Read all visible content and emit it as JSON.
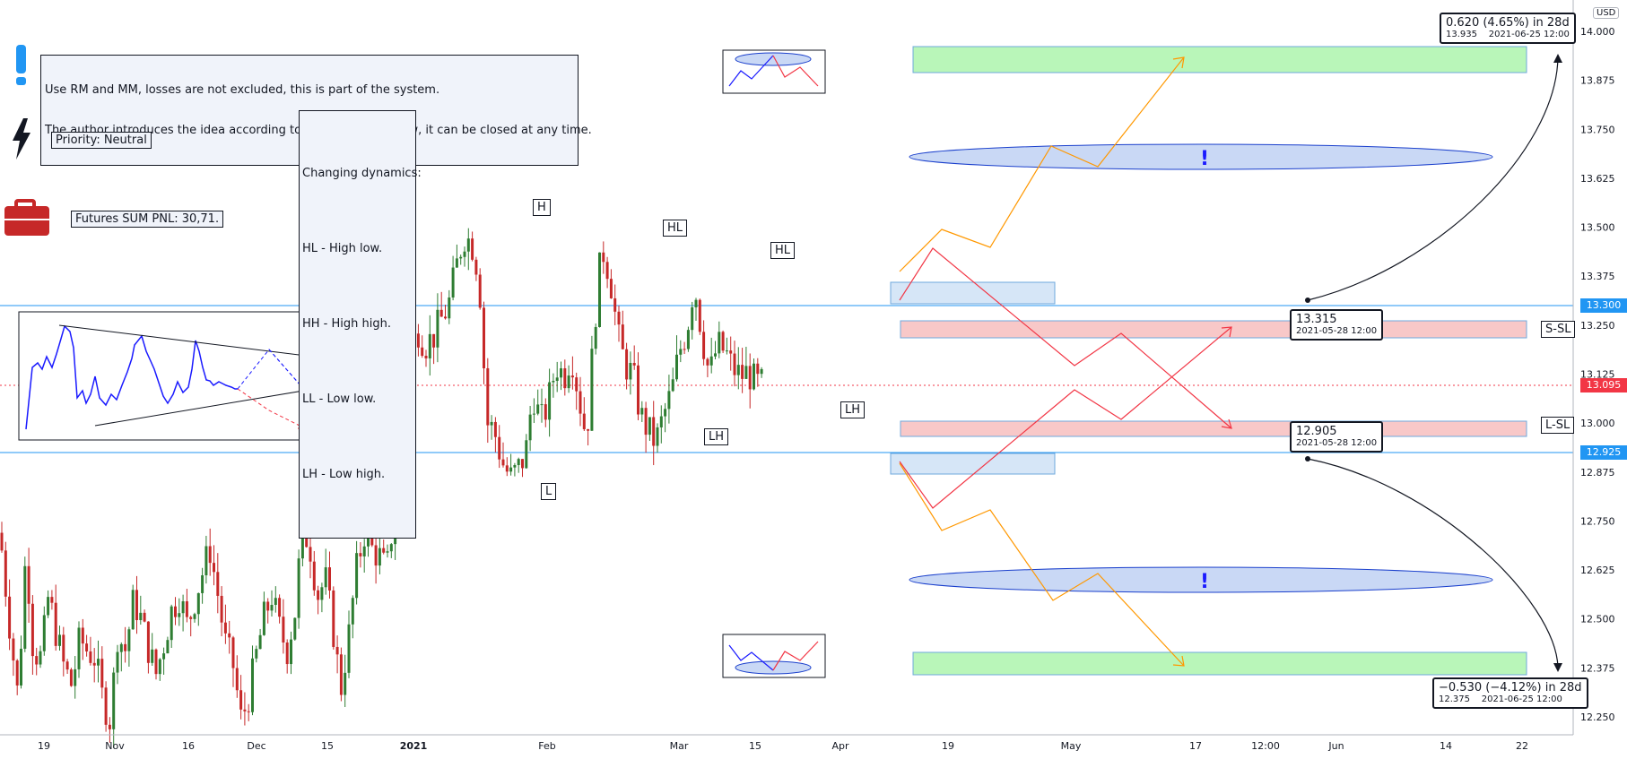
{
  "header": {
    "currency": "USD"
  },
  "colors": {
    "up_candle": "#2e7d32",
    "down_candle": "#c62828",
    "current_price": "#f23645",
    "level_line": "#2196f3",
    "target_zone": "#b9f6b9",
    "stop_zone": "#f8c8c8",
    "entry_zone": "#d6e6f7",
    "ellipse_fill": "#c9d8f5",
    "arrow_orange": "#ff9800",
    "arrow_red": "#f23645"
  },
  "notes": {
    "risk_line1": "Use RM and MM, losses are not excluded, this is part of the system.",
    "risk_line2": "The author introduces the idea according to the subjective view, it can be closed at any time.",
    "priority": "Priority: Neutral",
    "futures_pnl": "Futures SUM PNL: 30,71.",
    "dynamics_title": "Changing dynamics:",
    "dynamics_items": [
      "HL - High low.",
      "HH - High high.",
      "LL - Low low.",
      "LH - Low high."
    ]
  },
  "pattern_labels": [
    "H",
    "L",
    "HL",
    "LH",
    "HL",
    "LH"
  ],
  "zone_labels": {
    "short_sl": "S-SL",
    "long_sl": "L-SL"
  },
  "ellipse_marks": [
    "!",
    "!"
  ],
  "measures": {
    "up": {
      "value": "0.620 (4.65%) in 28d",
      "price": "13.935",
      "time": "2021-06-25  12:00"
    },
    "down": {
      "value": "−0.530 (−4.12%) in 28d",
      "price": "12.375",
      "time": "2021-06-25  12:00"
    },
    "anchor_up": {
      "price": "13.315",
      "time": "2021-05-28 12:00"
    },
    "anchor_down": {
      "price": "12.905",
      "time": "2021-05-28 12:00"
    }
  },
  "price_tags": {
    "upper_level": "13.300",
    "current": "13.095",
    "lower_level": "12.925"
  },
  "chart_data": {
    "type": "candlestick",
    "title": "",
    "xlabel": "",
    "ylabel": "",
    "ylim": [
      12.2,
      14.05
    ],
    "y_ticks": [
      12.25,
      12.375,
      12.5,
      12.625,
      12.75,
      12.875,
      13.0,
      13.125,
      13.25,
      13.375,
      13.5,
      13.625,
      13.75,
      13.875,
      14.0
    ],
    "y_tick_labels": [
      "12.250",
      "12.375",
      "12.500",
      "12.625",
      "12.750",
      "12.875",
      "13.000",
      "13.125",
      "13.250",
      "13.375",
      "13.500",
      "13.625",
      "13.750",
      "13.875",
      "14.000"
    ],
    "x_tick_labels": [
      "19",
      "Nov",
      "16",
      "Dec",
      "15",
      "2021",
      "Feb",
      "Mar",
      "15",
      "Apr",
      "19",
      "May",
      "17",
      "12:00",
      "Jun",
      "14",
      "22"
    ],
    "grid": false,
    "price_path": [
      [
        0,
        12.72
      ],
      [
        9,
        12.52
      ],
      [
        20,
        12.3
      ],
      [
        29,
        12.68
      ],
      [
        37,
        12.42
      ],
      [
        46,
        12.4
      ],
      [
        54,
        12.56
      ],
      [
        63,
        12.46
      ],
      [
        71,
        12.38
      ],
      [
        80,
        12.33
      ],
      [
        89,
        12.45
      ],
      [
        97,
        12.42
      ],
      [
        106,
        12.4
      ],
      [
        114,
        12.3
      ],
      [
        123,
        12.24
      ],
      [
        131,
        12.46
      ],
      [
        140,
        12.42
      ],
      [
        149,
        12.55
      ],
      [
        157,
        12.5
      ],
      [
        166,
        12.42
      ],
      [
        174,
        12.36
      ],
      [
        183,
        12.44
      ],
      [
        191,
        12.52
      ],
      [
        200,
        12.56
      ],
      [
        209,
        12.48
      ],
      [
        217,
        12.55
      ],
      [
        226,
        12.62
      ],
      [
        234,
        12.68
      ],
      [
        243,
        12.56
      ],
      [
        251,
        12.44
      ],
      [
        260,
        12.38
      ],
      [
        269,
        12.24
      ],
      [
        277,
        12.3
      ],
      [
        286,
        12.41
      ],
      [
        294,
        12.5
      ],
      [
        303,
        12.56
      ],
      [
        311,
        12.48
      ],
      [
        320,
        12.42
      ],
      [
        329,
        12.52
      ],
      [
        337,
        12.74
      ],
      [
        346,
        12.68
      ],
      [
        354,
        12.56
      ],
      [
        363,
        12.6
      ],
      [
        371,
        12.48
      ],
      [
        380,
        12.32
      ],
      [
        389,
        12.46
      ],
      [
        397,
        12.62
      ],
      [
        406,
        12.72
      ],
      [
        414,
        12.68
      ],
      [
        423,
        12.66
      ],
      [
        431,
        12.62
      ],
      [
        440,
        12.78
      ],
      [
        449,
        13.05
      ],
      [
        457,
        13.18
      ],
      [
        466,
        13.24
      ],
      [
        474,
        13.2
      ],
      [
        483,
        13.22
      ],
      [
        491,
        13.26
      ],
      [
        500,
        13.3
      ],
      [
        509,
        13.4
      ],
      [
        517,
        13.48
      ],
      [
        526,
        13.46
      ],
      [
        534,
        13.38
      ],
      [
        543,
        13.0
      ],
      [
        551,
        12.98
      ],
      [
        560,
        12.9
      ],
      [
        569,
        12.86
      ],
      [
        577,
        12.88
      ],
      [
        586,
        12.92
      ],
      [
        594,
        13.08
      ],
      [
        603,
        13.0
      ],
      [
        611,
        13.05
      ],
      [
        620,
        13.15
      ],
      [
        629,
        13.12
      ],
      [
        637,
        13.18
      ],
      [
        646,
        13.06
      ],
      [
        654,
        12.96
      ],
      [
        663,
        13.26
      ],
      [
        671,
        13.45
      ],
      [
        680,
        13.38
      ],
      [
        689,
        13.22
      ],
      [
        697,
        13.15
      ],
      [
        706,
        13.12
      ],
      [
        714,
        13.02
      ],
      [
        723,
        12.98
      ],
      [
        731,
        12.95
      ],
      [
        740,
        13.02
      ],
      [
        749,
        13.08
      ],
      [
        757,
        13.18
      ],
      [
        766,
        13.24
      ],
      [
        774,
        13.36
      ],
      [
        783,
        13.22
      ],
      [
        791,
        13.12
      ],
      [
        800,
        13.2
      ],
      [
        809,
        13.18
      ],
      [
        817,
        13.14
      ],
      [
        826,
        13.12
      ],
      [
        834,
        13.13
      ],
      [
        843,
        13.1
      ],
      [
        851,
        13.1
      ]
    ],
    "levels": {
      "upper_horizontal": 13.3,
      "lower_horizontal": 12.925,
      "current": 13.095
    }
  }
}
